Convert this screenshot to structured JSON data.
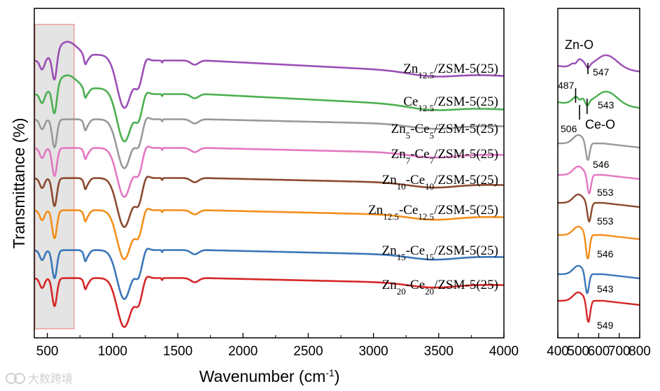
{
  "chart_data": [
    {
      "type": "line",
      "panel": "main",
      "xlabel": "Wavenumber (cm",
      "xlabel_sup": "-1",
      "xlabel_end": ")",
      "ylabel": "Transmittance (%)",
      "xlim": [
        400,
        4000
      ],
      "xticks": [
        500,
        1000,
        1500,
        2000,
        2500,
        3000,
        3500,
        4000
      ],
      "xtick_labels": [
        "500",
        "1000",
        "1500",
        "2000",
        "2500",
        "3000",
        "3500",
        "4000"
      ],
      "highlight_range": [
        400,
        700
      ],
      "series": [
        {
          "name": "Zn20-Ce20/ZSM-5(25)",
          "label_parts": [
            [
              "Zn",
              ""
            ],
            [
              "20",
              "sub"
            ],
            [
              "-Ce",
              ""
            ],
            [
              "20",
              "sub"
            ],
            [
              "/ZSM-5(25)",
              ""
            ]
          ],
          "color": "#d62728",
          "offset": 0
        },
        {
          "name": "Zn15-Ce15/ZSM-5(25)",
          "label_parts": [
            [
              "Zn",
              ""
            ],
            [
              "15",
              "sub"
            ],
            [
              "-Ce",
              ""
            ],
            [
              "15",
              "sub"
            ],
            [
              "/ZSM-5(25)",
              ""
            ]
          ],
          "color": "#3a77b8",
          "offset": 1
        },
        {
          "name": "Zn12.5-Ce12.5/ZSM-5(25)",
          "label_parts": [
            [
              "Zn",
              ""
            ],
            [
              "12.5",
              "sub"
            ],
            [
              "-Ce",
              ""
            ],
            [
              "12.5",
              "sub"
            ],
            [
              "/ZSM-5(25)",
              ""
            ]
          ],
          "color": "#f28e1c",
          "offset": 2
        },
        {
          "name": "Zn10-Ce10/ZSM-5(25)",
          "label_parts": [
            [
              "Zn",
              ""
            ],
            [
              "10",
              "sub"
            ],
            [
              "-Ce",
              ""
            ],
            [
              "10",
              "sub"
            ],
            [
              "/ZSM-5(25)",
              ""
            ]
          ],
          "color": "#8c4a2f",
          "offset": 3
        },
        {
          "name": "Zn7-Ce7/ZSM-5(25)",
          "label_parts": [
            [
              "Zn",
              ""
            ],
            [
              "7",
              "sub"
            ],
            [
              "-Ce",
              ""
            ],
            [
              "7",
              "sub"
            ],
            [
              "/ZSM-5(25)",
              ""
            ]
          ],
          "color": "#e377c2",
          "offset": 4
        },
        {
          "name": "Zn5-Ce5/ZSM-5(25)",
          "label_parts": [
            [
              "Zn",
              ""
            ],
            [
              "5",
              "sub"
            ],
            [
              "-Ce",
              ""
            ],
            [
              "5",
              "sub"
            ],
            [
              "/ZSM-5(25)",
              ""
            ]
          ],
          "color": "#999999",
          "offset": 5
        },
        {
          "name": "Ce12.5/ZSM-5(25)",
          "label_parts": [
            [
              "Ce",
              ""
            ],
            [
              "12.5",
              "sub"
            ],
            [
              "/ZSM-5(25)",
              ""
            ]
          ],
          "color": "#4caf50",
          "offset": 6
        },
        {
          "name": "Zn12.5/ZSM-5(25)",
          "label_parts": [
            [
              "Zn",
              ""
            ],
            [
              "12.5",
              "sub"
            ],
            [
              "/ZSM-5(25)",
              ""
            ]
          ],
          "color": "#9b4fb5",
          "offset": 7
        }
      ]
    },
    {
      "type": "line",
      "panel": "inset",
      "xlim": [
        400,
        800
      ],
      "xticks": [
        400,
        500,
        600,
        700,
        800
      ],
      "xtick_labels": [
        "400",
        "500",
        "600",
        "700",
        "800"
      ],
      "band_labels": [
        "Zn-O",
        "Ce-O"
      ],
      "peaks": [
        {
          "series": "Zn12.5/ZSM-5(25)",
          "minima": [
            487,
            547
          ],
          "labels": [
            "487",
            "547"
          ]
        },
        {
          "series": "Ce12.5/ZSM-5(25)",
          "minima": [
            506,
            543
          ],
          "labels": [
            "506",
            "543"
          ]
        },
        {
          "series": "Zn5-Ce5/ZSM-5(25)",
          "minima": [
            546
          ],
          "labels": [
            "546"
          ]
        },
        {
          "series": "Zn7-Ce7/ZSM-5(25)",
          "minima": [
            553
          ],
          "labels": [
            "553"
          ]
        },
        {
          "series": "Zn10-Ce10/ZSM-5(25)",
          "minima": [
            553
          ],
          "labels": [
            "553"
          ]
        },
        {
          "series": "Zn12.5-Ce12.5/ZSM-5(25)",
          "minima": [
            546
          ],
          "labels": [
            "546"
          ]
        },
        {
          "series": "Zn15-Ce15/ZSM-5(25)",
          "minima": [
            543
          ],
          "labels": [
            "543"
          ]
        },
        {
          "series": "Zn20-Ce20/ZSM-5(25)",
          "minima": [
            549
          ],
          "labels": [
            "549"
          ]
        }
      ]
    }
  ],
  "watermark": "大数跨境"
}
